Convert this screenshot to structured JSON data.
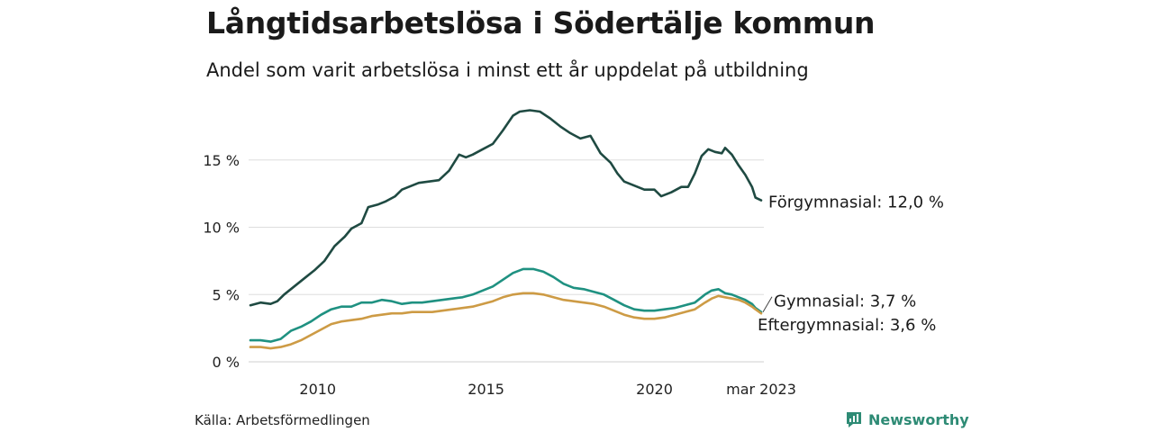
{
  "title": "Långtidsarbetslösa i Södertälje kommun",
  "subtitle": "Andel som varit arbetslösa i minst ett år uppdelat på utbildning",
  "source": "Källa: Arbetsförmedlingen",
  "brand": {
    "name": "Newsworthy",
    "color": "#2e8b75",
    "icon": "newsworthy-logo-icon"
  },
  "chart_data": {
    "type": "line",
    "title": "Långtidsarbetslösa i Södertälje kommun",
    "subtitle": "Andel som varit arbetslösa i minst ett år uppdelat på utbildning",
    "xlabel": "",
    "ylabel": "",
    "xlim": [
      2008.0,
      2023.25
    ],
    "ylim": [
      0,
      19
    ],
    "x_ticks": [
      {
        "value": 2010,
        "label": "2010"
      },
      {
        "value": 2015,
        "label": "2015"
      },
      {
        "value": 2020,
        "label": "2020"
      },
      {
        "value": 2023.17,
        "label": "mar 2023"
      }
    ],
    "y_ticks": [
      {
        "value": 0,
        "label": "0 %"
      },
      {
        "value": 5,
        "label": "5 %"
      },
      {
        "value": 10,
        "label": "10 %"
      },
      {
        "value": 15,
        "label": "15 %"
      }
    ],
    "grid": "horizontal",
    "legend": "direct labels at line ends",
    "series": [
      {
        "name": "Förgymnasial",
        "end_label": "Förgymnasial: 12,0 %",
        "color": "#1f4a42",
        "points": [
          [
            2008.0,
            4.2
          ],
          [
            2008.3,
            4.4
          ],
          [
            2008.6,
            4.3
          ],
          [
            2008.8,
            4.5
          ],
          [
            2009.0,
            5.0
          ],
          [
            2009.3,
            5.6
          ],
          [
            2009.6,
            6.2
          ],
          [
            2009.9,
            6.8
          ],
          [
            2010.2,
            7.5
          ],
          [
            2010.5,
            8.6
          ],
          [
            2010.8,
            9.3
          ],
          [
            2011.0,
            9.9
          ],
          [
            2011.3,
            10.3
          ],
          [
            2011.5,
            11.5
          ],
          [
            2011.8,
            11.7
          ],
          [
            2012.0,
            11.9
          ],
          [
            2012.3,
            12.3
          ],
          [
            2012.5,
            12.8
          ],
          [
            2012.8,
            13.1
          ],
          [
            2013.0,
            13.3
          ],
          [
            2013.3,
            13.4
          ],
          [
            2013.6,
            13.5
          ],
          [
            2013.9,
            14.2
          ],
          [
            2014.2,
            15.4
          ],
          [
            2014.4,
            15.2
          ],
          [
            2014.6,
            15.4
          ],
          [
            2014.9,
            15.8
          ],
          [
            2015.2,
            16.2
          ],
          [
            2015.5,
            17.2
          ],
          [
            2015.8,
            18.3
          ],
          [
            2016.0,
            18.6
          ],
          [
            2016.3,
            18.7
          ],
          [
            2016.6,
            18.6
          ],
          [
            2016.9,
            18.1
          ],
          [
            2017.2,
            17.5
          ],
          [
            2017.5,
            17.0
          ],
          [
            2017.8,
            16.6
          ],
          [
            2018.1,
            16.8
          ],
          [
            2018.4,
            15.5
          ],
          [
            2018.7,
            14.8
          ],
          [
            2018.9,
            14.0
          ],
          [
            2019.1,
            13.4
          ],
          [
            2019.4,
            13.1
          ],
          [
            2019.7,
            12.8
          ],
          [
            2020.0,
            12.8
          ],
          [
            2020.2,
            12.3
          ],
          [
            2020.5,
            12.6
          ],
          [
            2020.8,
            13.0
          ],
          [
            2021.0,
            13.0
          ],
          [
            2021.2,
            14.0
          ],
          [
            2021.4,
            15.3
          ],
          [
            2021.6,
            15.8
          ],
          [
            2021.8,
            15.6
          ],
          [
            2022.0,
            15.5
          ],
          [
            2022.1,
            15.9
          ],
          [
            2022.3,
            15.4
          ],
          [
            2022.5,
            14.6
          ],
          [
            2022.7,
            13.9
          ],
          [
            2022.9,
            13.0
          ],
          [
            2023.0,
            12.2
          ],
          [
            2023.17,
            12.0
          ]
        ]
      },
      {
        "name": "Gymnasial",
        "end_label": "Gymnasial:  3,7 %",
        "color": "#1f9181",
        "points": [
          [
            2008.0,
            1.6
          ],
          [
            2008.3,
            1.6
          ],
          [
            2008.6,
            1.5
          ],
          [
            2008.9,
            1.7
          ],
          [
            2009.2,
            2.3
          ],
          [
            2009.5,
            2.6
          ],
          [
            2009.8,
            3.0
          ],
          [
            2010.1,
            3.5
          ],
          [
            2010.4,
            3.9
          ],
          [
            2010.7,
            4.1
          ],
          [
            2011.0,
            4.1
          ],
          [
            2011.3,
            4.4
          ],
          [
            2011.6,
            4.4
          ],
          [
            2011.9,
            4.6
          ],
          [
            2012.2,
            4.5
          ],
          [
            2012.5,
            4.3
          ],
          [
            2012.8,
            4.4
          ],
          [
            2013.1,
            4.4
          ],
          [
            2013.4,
            4.5
          ],
          [
            2013.7,
            4.6
          ],
          [
            2014.0,
            4.7
          ],
          [
            2014.3,
            4.8
          ],
          [
            2014.6,
            5.0
          ],
          [
            2014.9,
            5.3
          ],
          [
            2015.2,
            5.6
          ],
          [
            2015.5,
            6.1
          ],
          [
            2015.8,
            6.6
          ],
          [
            2016.1,
            6.9
          ],
          [
            2016.4,
            6.9
          ],
          [
            2016.7,
            6.7
          ],
          [
            2017.0,
            6.3
          ],
          [
            2017.3,
            5.8
          ],
          [
            2017.6,
            5.5
          ],
          [
            2017.9,
            5.4
          ],
          [
            2018.2,
            5.2
          ],
          [
            2018.5,
            5.0
          ],
          [
            2018.8,
            4.6
          ],
          [
            2019.1,
            4.2
          ],
          [
            2019.4,
            3.9
          ],
          [
            2019.7,
            3.8
          ],
          [
            2020.0,
            3.8
          ],
          [
            2020.3,
            3.9
          ],
          [
            2020.6,
            4.0
          ],
          [
            2020.9,
            4.2
          ],
          [
            2021.2,
            4.4
          ],
          [
            2021.5,
            5.0
          ],
          [
            2021.7,
            5.3
          ],
          [
            2021.9,
            5.4
          ],
          [
            2022.1,
            5.1
          ],
          [
            2022.3,
            5.0
          ],
          [
            2022.5,
            4.8
          ],
          [
            2022.7,
            4.6
          ],
          [
            2022.9,
            4.3
          ],
          [
            2023.0,
            4.0
          ],
          [
            2023.17,
            3.7
          ]
        ]
      },
      {
        "name": "Eftergymnasial",
        "end_label": "Eftergymnasial:  3,6 %",
        "color": "#cd9b45",
        "points": [
          [
            2008.0,
            1.1
          ],
          [
            2008.3,
            1.1
          ],
          [
            2008.6,
            1.0
          ],
          [
            2008.9,
            1.1
          ],
          [
            2009.2,
            1.3
          ],
          [
            2009.5,
            1.6
          ],
          [
            2009.8,
            2.0
          ],
          [
            2010.1,
            2.4
          ],
          [
            2010.4,
            2.8
          ],
          [
            2010.7,
            3.0
          ],
          [
            2011.0,
            3.1
          ],
          [
            2011.3,
            3.2
          ],
          [
            2011.6,
            3.4
          ],
          [
            2011.9,
            3.5
          ],
          [
            2012.2,
            3.6
          ],
          [
            2012.5,
            3.6
          ],
          [
            2012.8,
            3.7
          ],
          [
            2013.1,
            3.7
          ],
          [
            2013.4,
            3.7
          ],
          [
            2013.7,
            3.8
          ],
          [
            2014.0,
            3.9
          ],
          [
            2014.3,
            4.0
          ],
          [
            2014.6,
            4.1
          ],
          [
            2014.9,
            4.3
          ],
          [
            2015.2,
            4.5
          ],
          [
            2015.5,
            4.8
          ],
          [
            2015.8,
            5.0
          ],
          [
            2016.1,
            5.1
          ],
          [
            2016.4,
            5.1
          ],
          [
            2016.7,
            5.0
          ],
          [
            2017.0,
            4.8
          ],
          [
            2017.3,
            4.6
          ],
          [
            2017.6,
            4.5
          ],
          [
            2017.9,
            4.4
          ],
          [
            2018.2,
            4.3
          ],
          [
            2018.5,
            4.1
          ],
          [
            2018.8,
            3.8
          ],
          [
            2019.1,
            3.5
          ],
          [
            2019.4,
            3.3
          ],
          [
            2019.7,
            3.2
          ],
          [
            2020.0,
            3.2
          ],
          [
            2020.3,
            3.3
          ],
          [
            2020.6,
            3.5
          ],
          [
            2020.9,
            3.7
          ],
          [
            2021.2,
            3.9
          ],
          [
            2021.5,
            4.4
          ],
          [
            2021.7,
            4.7
          ],
          [
            2021.9,
            4.9
          ],
          [
            2022.1,
            4.8
          ],
          [
            2022.3,
            4.7
          ],
          [
            2022.5,
            4.6
          ],
          [
            2022.7,
            4.4
          ],
          [
            2022.9,
            4.1
          ],
          [
            2023.0,
            3.9
          ],
          [
            2023.17,
            3.6
          ]
        ]
      }
    ]
  }
}
